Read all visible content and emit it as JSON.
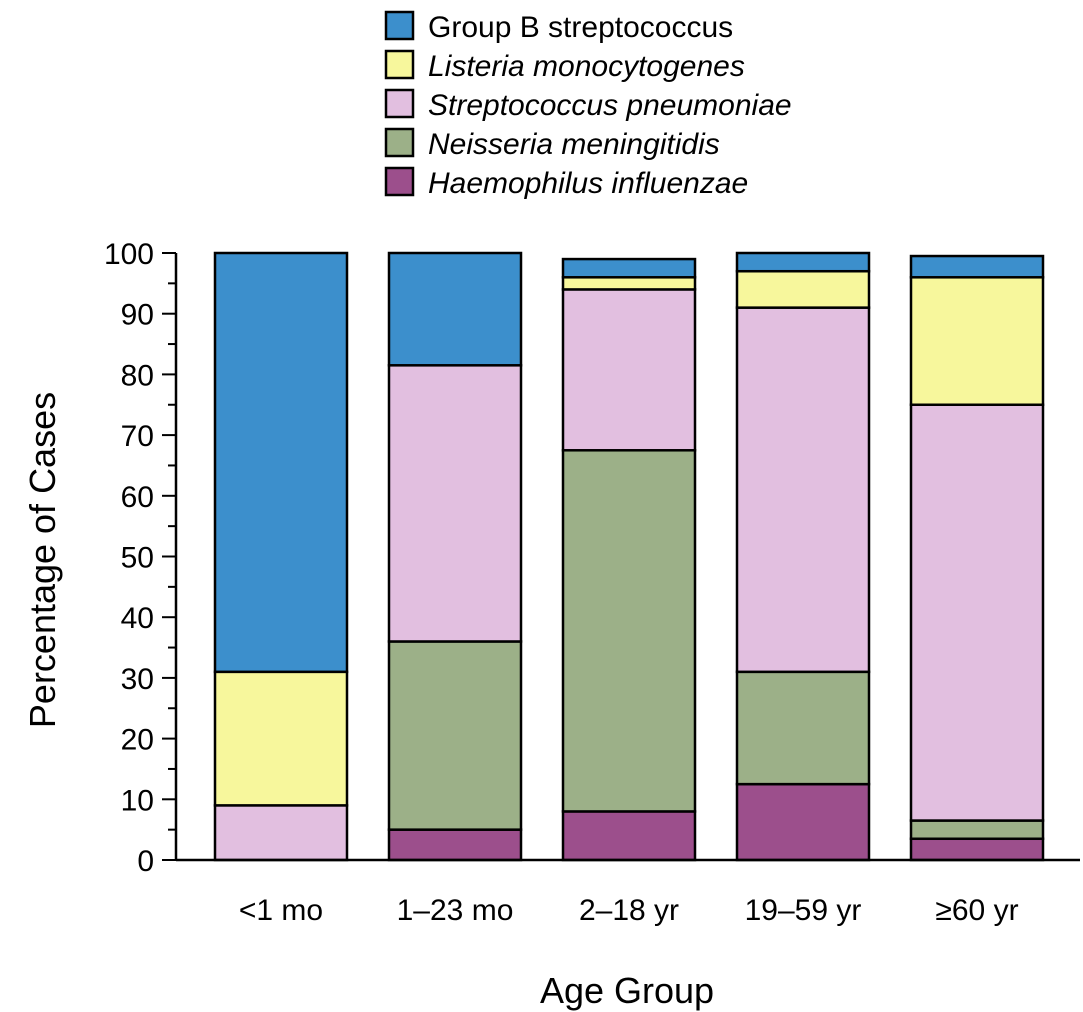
{
  "chart_data": {
    "type": "bar",
    "stacked": true,
    "categories": [
      "<1 mo",
      "1–23 mo",
      "2–18 yr",
      "19–59 yr",
      "≥60 yr"
    ],
    "series": [
      {
        "name": "Haemophilus influenzae",
        "italic": true,
        "color": "#9c4f8c",
        "values": [
          0,
          5,
          8,
          12.5,
          3.5
        ]
      },
      {
        "name": "Neisseria meningitidis",
        "italic": true,
        "color": "#9cb088",
        "values": [
          0,
          31,
          59.5,
          18.5,
          3
        ]
      },
      {
        "name": "Streptococcus pneumoniae",
        "italic": true,
        "color": "#e2bfe0",
        "values": [
          9,
          45.5,
          26.5,
          60,
          68.5
        ]
      },
      {
        "name": "Listeria monocytogenes",
        "italic": true,
        "color": "#f7f79c",
        "values": [
          22,
          0,
          2,
          6,
          21
        ]
      },
      {
        "name": "Group B streptococcus",
        "italic": false,
        "color": "#3c8fcc",
        "values": [
          69,
          18.5,
          3,
          3,
          3.5
        ]
      }
    ],
    "legend_order": [
      "Group B streptococcus",
      "Listeria monocytogenes",
      "Streptococcus pneumoniae",
      "Neisseria meningitidis",
      "Haemophilus influenzae"
    ],
    "legend_placement": "top",
    "xlabel": "Age Group",
    "ylabel": "Percentage of Cases",
    "ylim": [
      0,
      100
    ],
    "yticks": [
      0,
      10,
      20,
      30,
      40,
      50,
      60,
      70,
      80,
      90,
      100
    ],
    "grid": false
  }
}
